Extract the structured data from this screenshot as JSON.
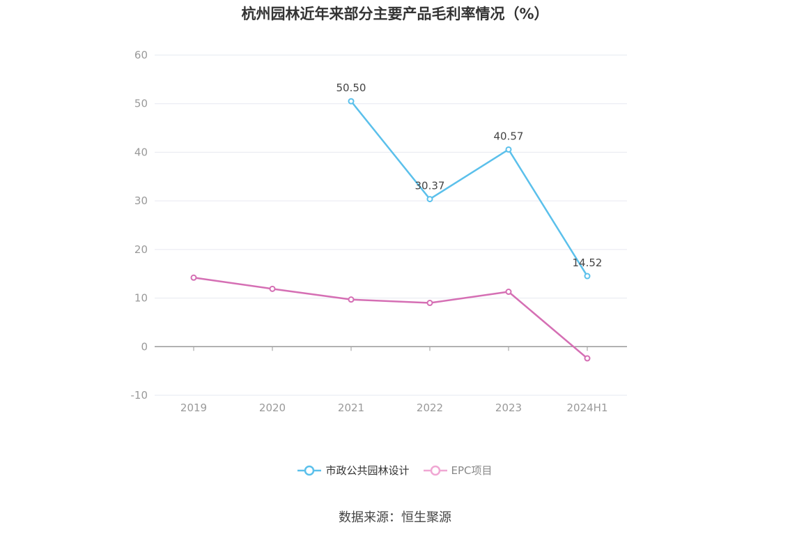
{
  "chart_data": {
    "type": "line",
    "title": "杭州园林近年来部分主要产品毛利率情况（%）",
    "categories": [
      "2019",
      "2020",
      "2021",
      "2022",
      "2023",
      "2024H1"
    ],
    "ylim": [
      -10,
      60
    ],
    "yticks": [
      "60",
      "50",
      "40",
      "30",
      "20",
      "10",
      "0",
      "-10"
    ],
    "grid": true,
    "legend_position": "bottom",
    "series": [
      {
        "name": "市政公共园林设计",
        "color": "#5bc0eb",
        "values": [
          null,
          null,
          50.5,
          30.37,
          40.57,
          14.52
        ],
        "labels": [
          "",
          "",
          "50.50",
          "30.37",
          "40.57",
          "14.52"
        ]
      },
      {
        "name": "EPC项目",
        "color": "#d56fb4",
        "legend_color": "#f0a7d3",
        "values": [
          14.2,
          11.9,
          9.7,
          9.0,
          11.3,
          -2.4
        ],
        "labels": [
          "",
          "",
          "",
          "",
          "",
          ""
        ]
      }
    ]
  },
  "source": "数据来源：恒生聚源"
}
